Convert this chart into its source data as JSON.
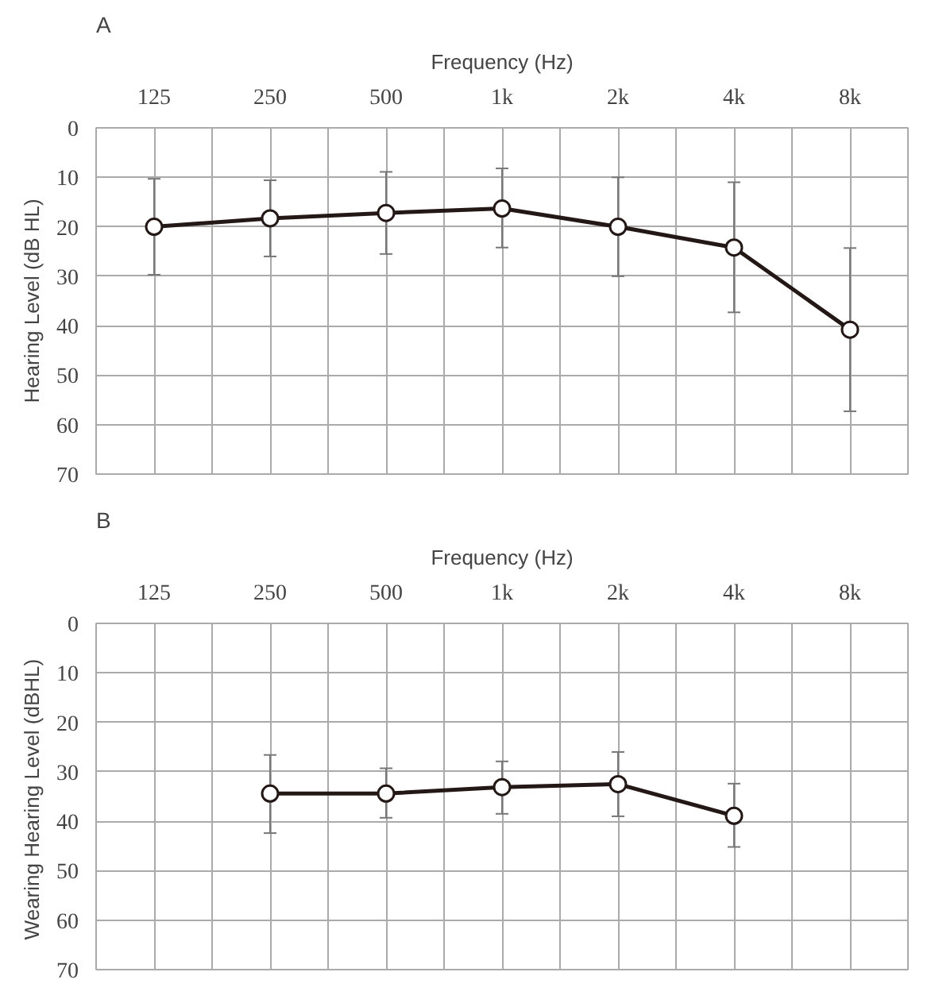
{
  "chart_data": [
    {
      "type": "line",
      "title": "A",
      "xlabel": "Frequency (Hz)",
      "ylabel": "Hearing Level (dB HL)",
      "categories": [
        "125",
        "250",
        "500",
        "1k",
        "2k",
        "4k",
        "8k"
      ],
      "ylim": [
        70,
        0
      ],
      "yticks": [
        0,
        10,
        20,
        30,
        40,
        50,
        60,
        70
      ],
      "grid": true,
      "marker": "circle",
      "line_style": "solid",
      "series": [
        {
          "color": "#231815",
          "values": [
            20,
            18.3,
            17.2,
            16.3,
            20,
            24.2,
            40.8
          ],
          "errors": [
            [
              10.3,
              29.7
            ],
            [
              10.6,
              26
            ],
            [
              8.9,
              25.5
            ],
            [
              8.2,
              24.2
            ],
            [
              10,
              30
            ],
            [
              11,
              37.3
            ],
            [
              24.3,
              57.3
            ]
          ]
        }
      ]
    },
    {
      "type": "line",
      "title": "B",
      "xlabel": "Frequency (Hz)",
      "ylabel": "Wearing Hearing Level  (dBHL)",
      "categories": [
        "125",
        "250",
        "500",
        "1k",
        "2k",
        "4k",
        "8k"
      ],
      "ylim": [
        70,
        0
      ],
      "yticks": [
        0,
        10,
        20,
        30,
        40,
        50,
        60,
        70
      ],
      "grid": true,
      "marker": "circle",
      "line_style": "solid",
      "series": [
        {
          "color": "#231815",
          "values": [
            null,
            34.4,
            34.4,
            33.1,
            32.5,
            38.9,
            null
          ],
          "errors": [
            null,
            [
              26.6,
              42.4
            ],
            [
              29.3,
              39.3
            ],
            [
              27.9,
              38.5
            ],
            [
              26,
              39
            ],
            [
              32.4,
              45.2
            ],
            null
          ]
        }
      ]
    }
  ]
}
